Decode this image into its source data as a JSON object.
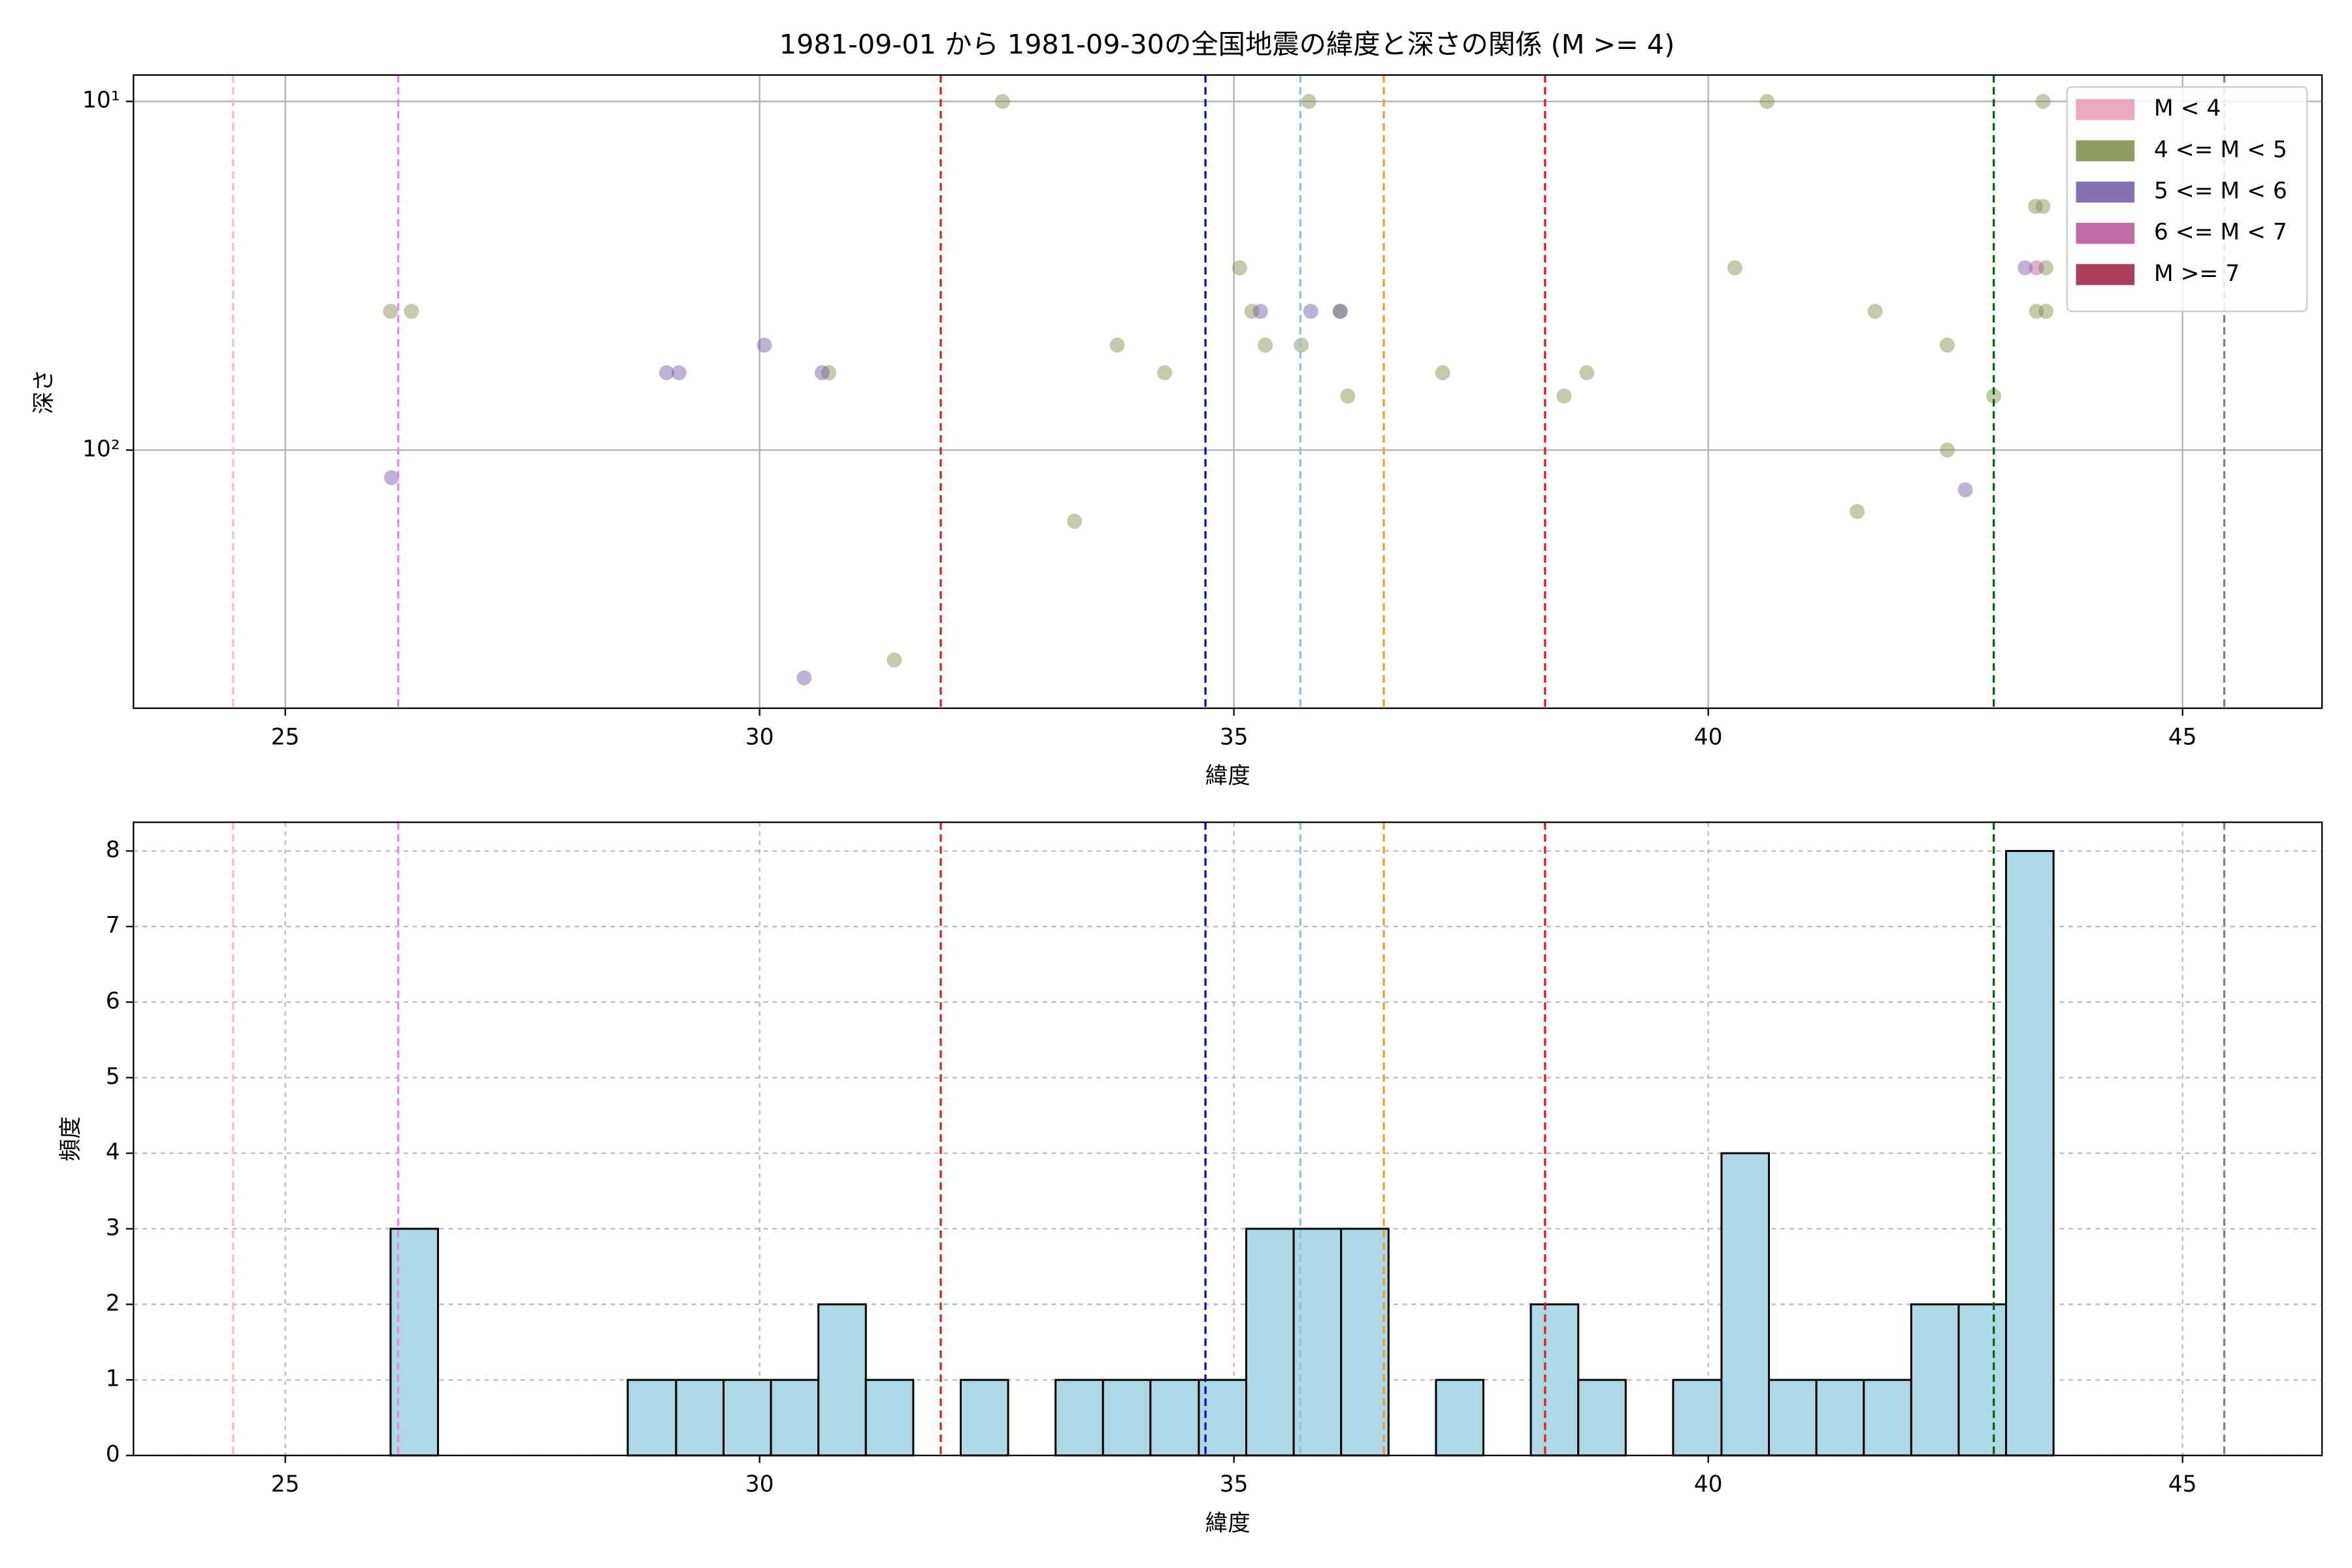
{
  "chart_data": [
    {
      "type": "scatter",
      "title": "1981-09-01 から 1981-09-30の全国地震の緯度と深さの関係 (M >= 4)",
      "xlabel": "緯度",
      "ylabel": "深さ",
      "xlim": [
        23.4,
        46.47
      ],
      "ylim": [
        8.4,
        550
      ],
      "y_log": true,
      "y_inverted": true,
      "xticks": [
        25,
        30,
        35,
        40,
        45
      ],
      "yticks": [
        {
          "value": 10,
          "label": "10¹"
        },
        {
          "value": 100,
          "label": "10²"
        }
      ],
      "grid": true,
      "legend": "upper right",
      "alpha": 0.45,
      "series": [
        {
          "name": "M < 4",
          "color": "#e899b5",
          "x": [],
          "values": []
        },
        {
          "name": "4 <= M < 5",
          "color": "#7a8c45",
          "x": [
            32.56,
            35.79,
            40.62,
            43.53,
            43.45,
            43.53,
            35.06,
            40.28,
            43.56,
            26.11,
            26.33,
            35.19,
            36.12,
            41.76,
            43.46,
            43.56,
            33.77,
            35.33,
            35.71,
            42.52,
            30.73,
            34.27,
            37.2,
            38.72,
            36.2,
            38.48,
            43.01,
            42.52,
            41.57,
            33.32,
            31.42
          ],
          "values": [
            10,
            10,
            10,
            10,
            20,
            20,
            30,
            30,
            30,
            40,
            40,
            40,
            40,
            40,
            40,
            40,
            50,
            50,
            50,
            50,
            60,
            60,
            60,
            60,
            70,
            70,
            70,
            100,
            150,
            160,
            400
          ]
        },
        {
          "name": "5 <= M < 6",
          "color": "#6f57a6",
          "x": [
            43.34,
            35.28,
            35.81,
            36.12,
            29.02,
            29.15,
            30.05,
            30.66,
            26.12,
            42.71,
            30.47
          ],
          "values": [
            30,
            40,
            40,
            40,
            60,
            60,
            50,
            60,
            120,
            130,
            450
          ]
        },
        {
          "name": "6 <= M < 7",
          "color": "#b5509a",
          "x": [
            43.46
          ],
          "values": [
            30
          ]
        },
        {
          "name": "M >= 7",
          "color": "#a01c40",
          "x": [],
          "values": []
        }
      ],
      "vlines": [
        {
          "x": 24.45,
          "color": "#ffb6c1"
        },
        {
          "x": 26.19,
          "color": "#ee82ee"
        },
        {
          "x": 31.91,
          "color": "#cc2222"
        },
        {
          "x": 34.7,
          "color": "#0000dd"
        },
        {
          "x": 35.7,
          "color": "#87c4d8"
        },
        {
          "x": 36.58,
          "color": "#f0a020"
        },
        {
          "x": 38.28,
          "color": "#ee1111"
        },
        {
          "x": 43.01,
          "color": "#006400"
        },
        {
          "x": 45.44,
          "color": "#808080"
        }
      ]
    },
    {
      "type": "histogram",
      "xlabel": "緯度",
      "ylabel": "頻度",
      "xlim": [
        23.4,
        46.47
      ],
      "ylim": [
        0,
        8.38
      ],
      "xticks": [
        25,
        30,
        35,
        40,
        45
      ],
      "yticks": [
        0,
        1,
        2,
        3,
        4,
        5,
        6,
        7,
        8
      ],
      "grid": true,
      "color": "#add8e6",
      "edgecolor": "#000000",
      "bins": [
        26.11,
        26.61,
        27.11,
        27.61,
        28.11,
        28.61,
        29.12,
        29.62,
        30.12,
        30.62,
        31.12,
        31.62,
        32.12,
        32.62,
        33.12,
        33.62,
        34.12,
        34.63,
        35.13,
        35.63,
        36.13,
        36.63,
        37.13,
        37.63,
        38.13,
        38.63,
        39.13,
        39.63,
        40.14,
        40.64,
        41.14,
        41.64,
        42.14,
        42.64,
        43.14,
        43.64
      ],
      "values": [
        3,
        0,
        0,
        0,
        0,
        1,
        1,
        1,
        1,
        2,
        1,
        0,
        1,
        0,
        1,
        1,
        1,
        1,
        3,
        3,
        3,
        0,
        1,
        0,
        2,
        1,
        0,
        1,
        4,
        1,
        1,
        1,
        2,
        2,
        8
      ],
      "vlines": [
        {
          "x": 24.45,
          "color": "#ffb6c1"
        },
        {
          "x": 26.19,
          "color": "#ee82ee"
        },
        {
          "x": 31.91,
          "color": "#cc2222"
        },
        {
          "x": 34.7,
          "color": "#0000dd"
        },
        {
          "x": 35.7,
          "color": "#87c4d8"
        },
        {
          "x": 36.58,
          "color": "#f0a020"
        },
        {
          "x": 38.28,
          "color": "#ee1111"
        },
        {
          "x": 43.01,
          "color": "#006400"
        },
        {
          "x": 45.44,
          "color": "#808080"
        }
      ]
    }
  ]
}
